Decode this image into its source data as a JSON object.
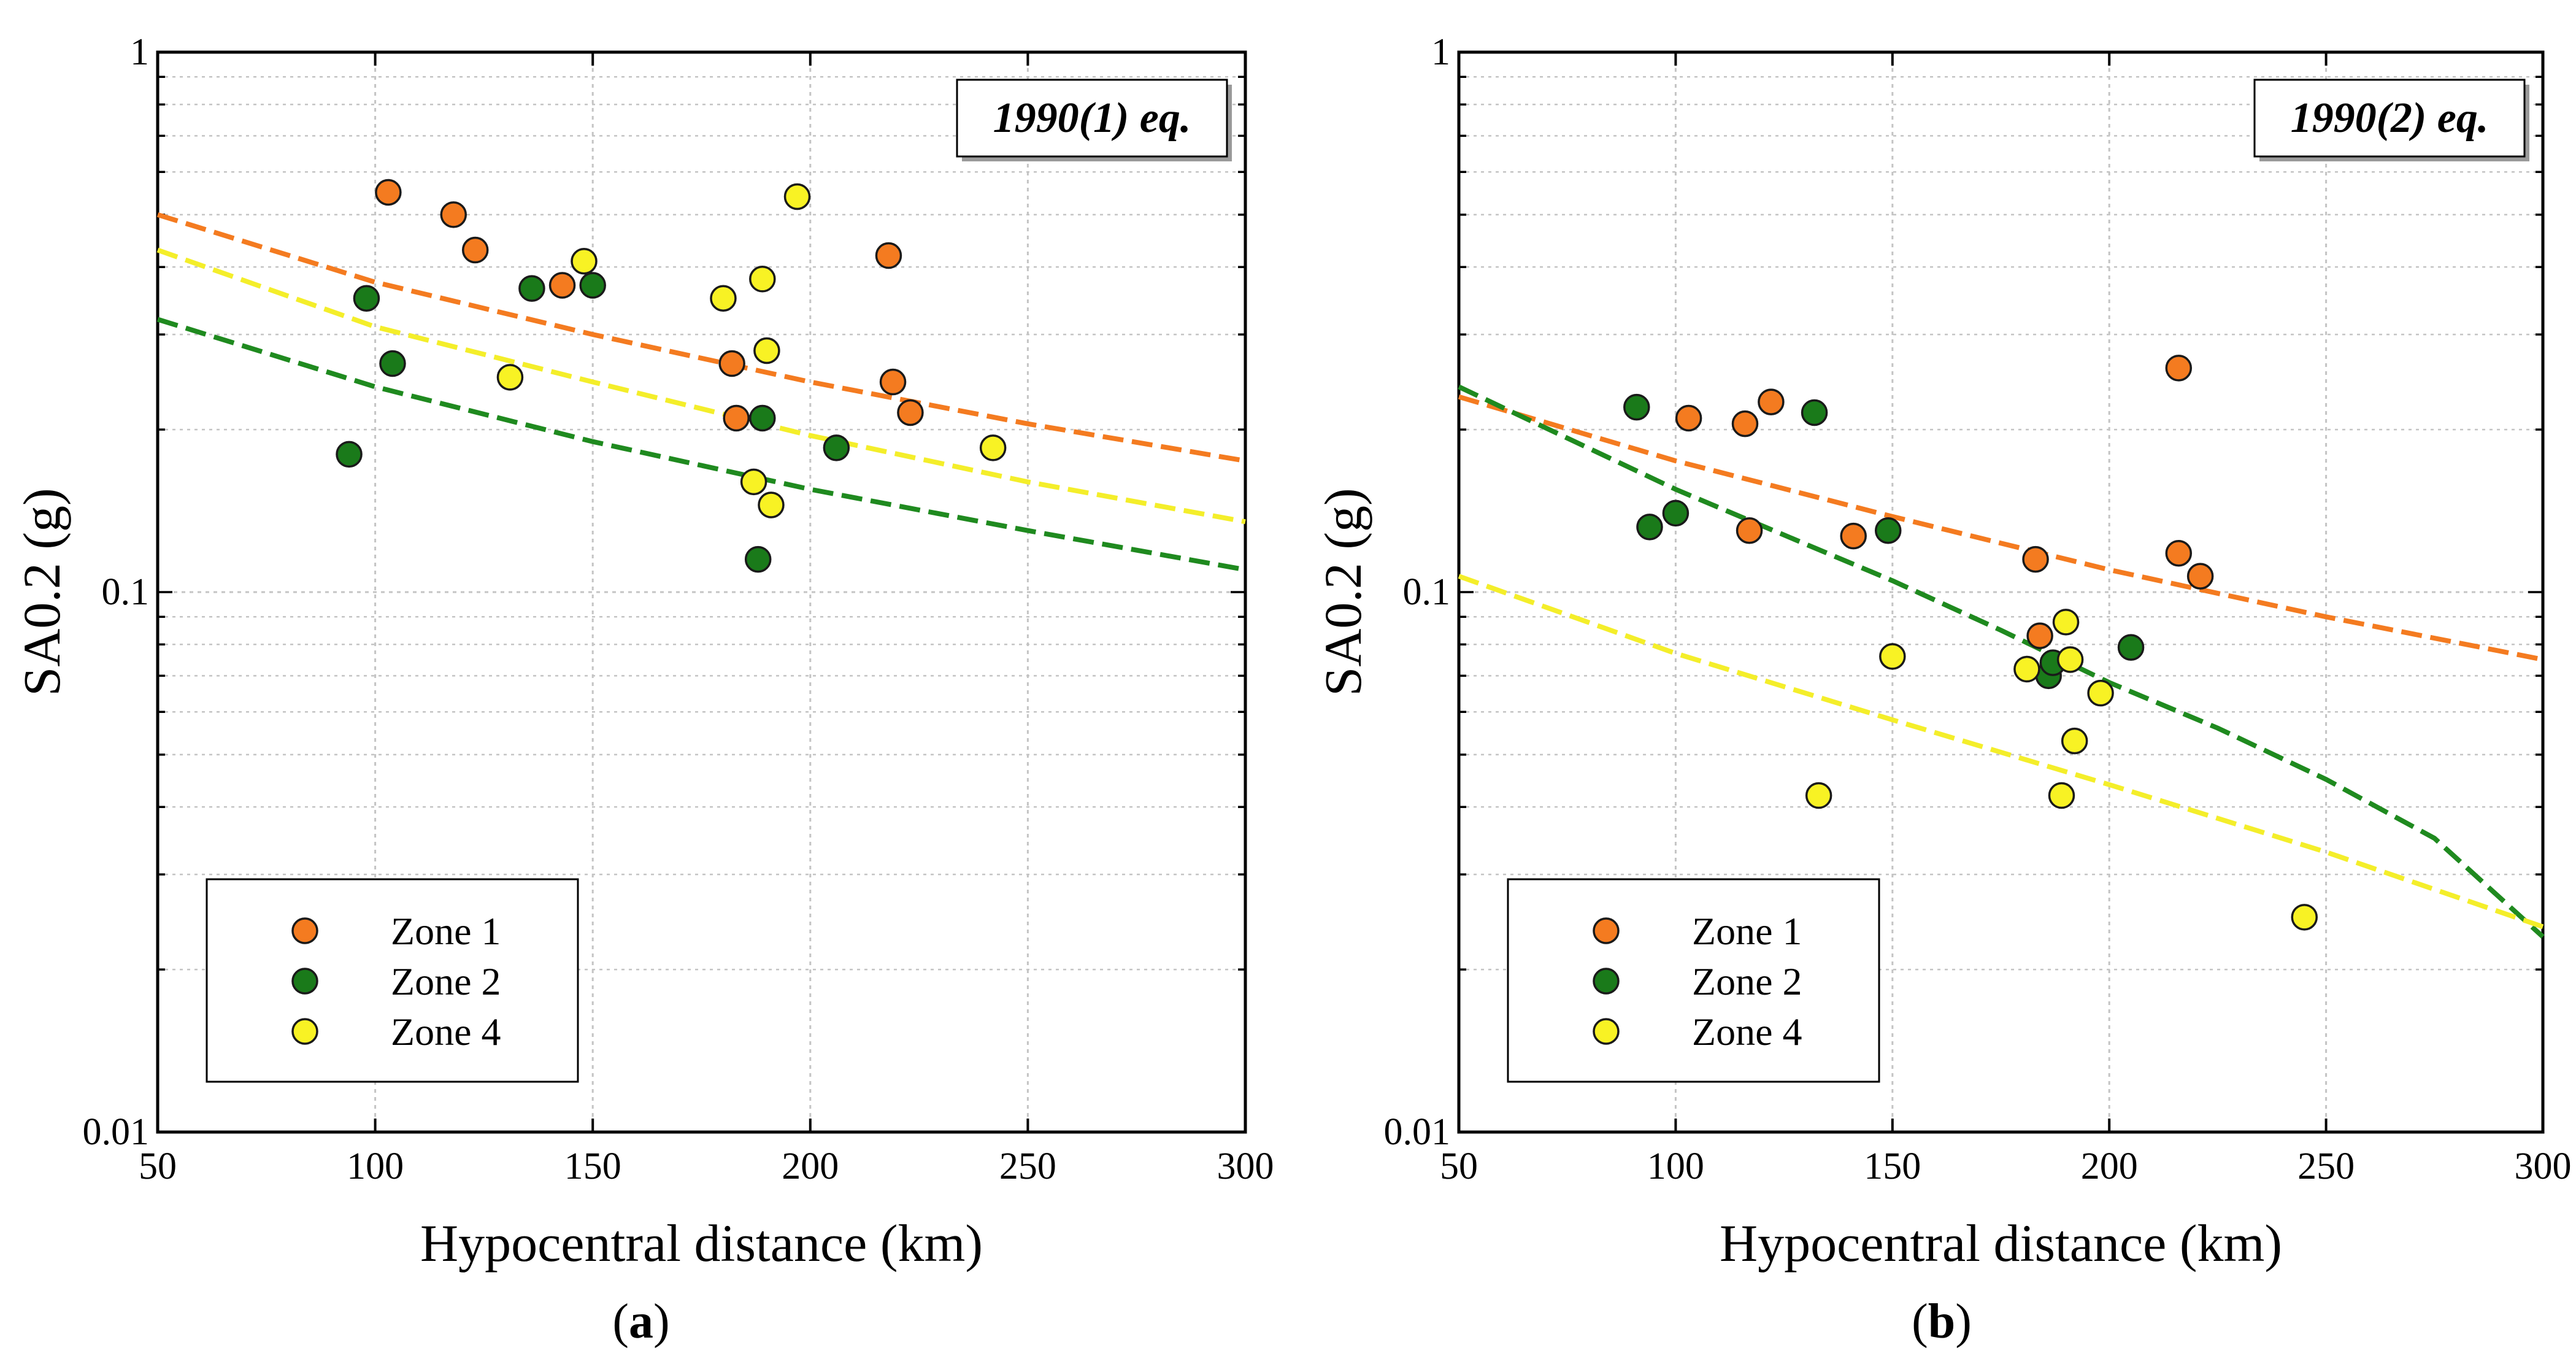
{
  "colors": {
    "zone1": "#f47b20",
    "zone2": "#1a7a1a",
    "zone4": "#f8f224",
    "zone1_line": "#f47b20",
    "zone2_line": "#1f8a1f",
    "zone4_line": "#f4ee2a",
    "grid": "#c4c4c4",
    "marker_edge": "#1a1a1a"
  },
  "chart_data": [
    {
      "type": "scatter",
      "panel": "a",
      "caption_label": "a",
      "title": "1990(1) eq.",
      "xlabel": "Hypocentral distance (km)",
      "ylabel": "SA0.2 (g)",
      "xlim": [
        50,
        300
      ],
      "ylim": [
        0.01,
        1
      ],
      "yscale": "log",
      "grid": true,
      "legend_position": "bottom-left",
      "xticks": [
        "50",
        "100",
        "150",
        "200",
        "250",
        "300"
      ],
      "yticks": [
        "0.01",
        "0.1",
        "1"
      ],
      "series": [
        {
          "name": "Zone 1",
          "key": "zone1",
          "x": [
            103,
            118,
            123,
            143,
            182,
            183,
            218,
            219,
            223
          ],
          "y": [
            0.55,
            0.5,
            0.43,
            0.37,
            0.265,
            0.21,
            0.42,
            0.245,
            0.215
          ]
        },
        {
          "name": "Zone 2",
          "key": "zone2",
          "x": [
            94,
            98,
            104,
            136,
            150,
            188,
            189,
            206
          ],
          "y": [
            0.18,
            0.35,
            0.265,
            0.365,
            0.37,
            0.115,
            0.21,
            0.185
          ]
        },
        {
          "name": "Zone 4",
          "key": "zone4",
          "x": [
            131,
            148,
            180,
            187,
            189,
            190,
            191,
            197,
            242
          ],
          "y": [
            0.25,
            0.41,
            0.35,
            0.16,
            0.38,
            0.28,
            0.145,
            0.54,
            0.185
          ]
        }
      ],
      "fits": [
        {
          "key": "zone1",
          "x": [
            50,
            100,
            150,
            200,
            250,
            300
          ],
          "y": [
            0.5,
            0.375,
            0.3,
            0.245,
            0.205,
            0.175
          ]
        },
        {
          "key": "zone4",
          "x": [
            50,
            100,
            150,
            200,
            250,
            300
          ],
          "y": [
            0.43,
            0.31,
            0.245,
            0.195,
            0.16,
            0.135
          ]
        },
        {
          "key": "zone2",
          "x": [
            50,
            100,
            150,
            200,
            250,
            300
          ],
          "y": [
            0.32,
            0.24,
            0.19,
            0.155,
            0.13,
            0.11
          ]
        }
      ]
    },
    {
      "type": "scatter",
      "panel": "b",
      "caption_label": "b",
      "title": "1990(2) eq.",
      "xlabel": "Hypocentral distance (km)",
      "ylabel": "SA0.2 (g)",
      "xlim": [
        50,
        300
      ],
      "ylim": [
        0.01,
        1
      ],
      "yscale": "log",
      "grid": true,
      "legend_position": "bottom-left",
      "xticks": [
        "50",
        "100",
        "150",
        "200",
        "250",
        "300"
      ],
      "yticks": [
        "0.01",
        "0.1",
        "1"
      ],
      "series": [
        {
          "name": "Zone 1",
          "key": "zone1",
          "x": [
            103,
            116,
            117,
            122,
            141,
            183,
            184,
            216,
            216,
            221
          ],
          "y": [
            0.21,
            0.205,
            0.13,
            0.225,
            0.127,
            0.115,
            0.083,
            0.26,
            0.118,
            0.107
          ]
        },
        {
          "name": "Zone 2",
          "key": "zone2",
          "x": [
            91,
            94,
            100,
            132,
            149,
            186,
            187,
            205
          ],
          "y": [
            0.22,
            0.132,
            0.14,
            0.215,
            0.13,
            0.07,
            0.074,
            0.079
          ]
        },
        {
          "name": "Zone 4",
          "key": "zone4",
          "x": [
            133,
            150,
            181,
            189,
            190,
            191,
            192,
            198,
            245
          ],
          "y": [
            0.042,
            0.076,
            0.072,
            0.042,
            0.088,
            0.075,
            0.053,
            0.065,
            0.025
          ]
        }
      ],
      "fits": [
        {
          "key": "zone1",
          "x": [
            50,
            100,
            150,
            200,
            250,
            300
          ],
          "y": [
            0.23,
            0.175,
            0.138,
            0.11,
            0.09,
            0.075
          ]
        },
        {
          "key": "zone2",
          "x": [
            50,
            100,
            150,
            175,
            200,
            225,
            250,
            275,
            300
          ],
          "y": [
            0.24,
            0.155,
            0.105,
            0.085,
            0.068,
            0.056,
            0.045,
            0.035,
            0.023
          ]
        },
        {
          "key": "zone4",
          "x": [
            50,
            100,
            150,
            200,
            250,
            300
          ],
          "y": [
            0.107,
            0.077,
            0.058,
            0.044,
            0.033,
            0.024
          ]
        }
      ]
    }
  ]
}
